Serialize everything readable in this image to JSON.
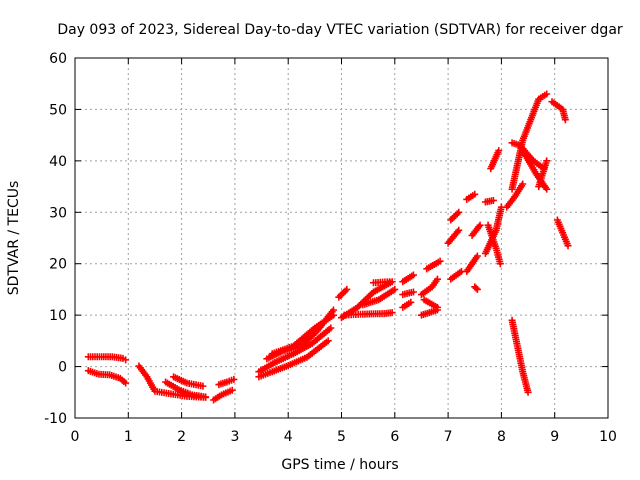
{
  "chart_data": {
    "type": "scatter",
    "title": "Day 093 of 2023, Sidereal Day-to-day VTEC variation (SDTVAR) for receiver dgar",
    "xlabel": "GPS time / hours",
    "ylabel": "SDTVAR / TECUs",
    "xlim": [
      0,
      10
    ],
    "ylim": [
      -10,
      60
    ],
    "xticks": [
      "0",
      "1",
      "2",
      "3",
      "4",
      "5",
      "6",
      "7",
      "8",
      "9",
      "10"
    ],
    "yticks": [
      "-10",
      "0",
      "10",
      "20",
      "30",
      "40",
      "50",
      "60"
    ],
    "grid": true,
    "marker": "plus",
    "color": "#ff0000",
    "tracks": [
      [
        [
          0.25,
          1.9
        ],
        [
          0.5,
          1.9
        ],
        [
          0.7,
          1.9
        ],
        [
          0.9,
          1.6
        ],
        [
          0.95,
          1.3
        ]
      ],
      [
        [
          0.25,
          -0.8
        ],
        [
          0.45,
          -1.5
        ],
        [
          0.65,
          -1.6
        ],
        [
          0.85,
          -2.3
        ],
        [
          0.95,
          -3.2
        ]
      ],
      [
        [
          1.2,
          0.1
        ],
        [
          1.35,
          -2.0
        ],
        [
          1.5,
          -4.8
        ],
        [
          1.8,
          -5.3
        ],
        [
          2.1,
          -5.8
        ],
        [
          2.45,
          -6.0
        ]
      ],
      [
        [
          1.7,
          -3.0
        ],
        [
          1.95,
          -4.5
        ],
        [
          2.2,
          -5.5
        ],
        [
          2.45,
          -5.9
        ]
      ],
      [
        [
          1.85,
          -2.0
        ],
        [
          2.1,
          -3.2
        ],
        [
          2.4,
          -3.8
        ]
      ],
      [
        [
          2.6,
          -6.5
        ],
        [
          2.75,
          -5.5
        ],
        [
          2.95,
          -4.6
        ]
      ],
      [
        [
          2.7,
          -3.5
        ],
        [
          2.85,
          -3.0
        ],
        [
          2.98,
          -2.5
        ]
      ],
      [
        [
          3.45,
          -2.0
        ],
        [
          3.7,
          -1.0
        ],
        [
          4.0,
          0.2
        ],
        [
          4.35,
          1.8
        ],
        [
          4.75,
          5.0
        ]
      ],
      [
        [
          3.45,
          -1.0
        ],
        [
          3.75,
          0.8
        ],
        [
          4.1,
          2.5
        ],
        [
          4.45,
          4.5
        ],
        [
          4.8,
          7.5
        ]
      ],
      [
        [
          3.6,
          1.5
        ],
        [
          3.9,
          3.0
        ],
        [
          4.25,
          4.0
        ],
        [
          4.55,
          7.0
        ],
        [
          4.85,
          11.0
        ]
      ],
      [
        [
          3.7,
          2.5
        ],
        [
          4.1,
          4.0
        ],
        [
          4.5,
          7.5
        ],
        [
          4.85,
          10.0
        ]
      ],
      [
        [
          5.0,
          9.5
        ],
        [
          5.3,
          11.5
        ],
        [
          5.6,
          14.5
        ],
        [
          5.95,
          16.5
        ]
      ],
      [
        [
          4.95,
          13.5
        ],
        [
          5.1,
          15.0
        ]
      ],
      [
        [
          5.05,
          10.0
        ],
        [
          5.4,
          10.2
        ],
        [
          5.8,
          10.3
        ],
        [
          5.95,
          10.5
        ]
      ],
      [
        [
          5.4,
          12.0
        ],
        [
          5.7,
          13.0
        ],
        [
          6.0,
          15.0
        ]
      ],
      [
        [
          5.6,
          16.3
        ],
        [
          5.9,
          16.5
        ]
      ],
      [
        [
          6.15,
          11.5
        ],
        [
          6.3,
          12.5
        ]
      ],
      [
        [
          6.15,
          14.0
        ],
        [
          6.35,
          14.5
        ]
      ],
      [
        [
          6.15,
          16.5
        ],
        [
          6.35,
          17.8
        ]
      ],
      [
        [
          6.5,
          14.0
        ],
        [
          6.7,
          15.5
        ],
        [
          6.8,
          17.0
        ]
      ],
      [
        [
          6.5,
          10.0
        ],
        [
          6.8,
          11.0
        ]
      ],
      [
        [
          6.55,
          13.0
        ],
        [
          6.8,
          11.5
        ]
      ],
      [
        [
          6.6,
          19.0
        ],
        [
          6.85,
          20.5
        ]
      ],
      [
        [
          7.0,
          24.0
        ],
        [
          7.2,
          26.5
        ]
      ],
      [
        [
          7.05,
          28.5
        ],
        [
          7.2,
          30.0
        ]
      ],
      [
        [
          7.05,
          17.0
        ],
        [
          7.25,
          18.5
        ]
      ],
      [
        [
          7.35,
          18.5
        ],
        [
          7.55,
          21.5
        ]
      ],
      [
        [
          7.45,
          25.5
        ],
        [
          7.6,
          27.5
        ]
      ],
      [
        [
          7.35,
          32.5
        ],
        [
          7.5,
          33.5
        ]
      ],
      [
        [
          7.5,
          15.5
        ],
        [
          7.55,
          15.0
        ]
      ],
      [
        [
          7.7,
          22.0
        ],
        [
          7.9,
          26.5
        ],
        [
          8.0,
          31.0
        ]
      ],
      [
        [
          7.75,
          27.5
        ],
        [
          7.9,
          23.0
        ],
        [
          7.98,
          20.0
        ]
      ],
      [
        [
          7.7,
          32.0
        ],
        [
          7.85,
          32.3
        ]
      ],
      [
        [
          7.8,
          38.5
        ],
        [
          7.95,
          42.0
        ]
      ],
      [
        [
          8.1,
          31.0
        ],
        [
          8.25,
          33.0
        ],
        [
          8.4,
          35.5
        ]
      ],
      [
        [
          8.2,
          34.5
        ],
        [
          8.4,
          44.0
        ],
        [
          8.7,
          52.0
        ],
        [
          8.85,
          53.0
        ]
      ],
      [
        [
          8.2,
          43.5
        ],
        [
          8.35,
          43.0
        ],
        [
          8.6,
          40.0
        ],
        [
          8.8,
          38.5
        ]
      ],
      [
        [
          8.4,
          42.0
        ],
        [
          8.65,
          37.5
        ],
        [
          8.85,
          34.5
        ]
      ],
      [
        [
          8.7,
          35.0
        ],
        [
          8.85,
          40.0
        ]
      ],
      [
        [
          8.5,
          40.5
        ],
        [
          8.6,
          40.0
        ]
      ],
      [
        [
          8.95,
          51.5
        ],
        [
          9.15,
          50.0
        ],
        [
          9.2,
          48.0
        ]
      ],
      [
        [
          9.05,
          28.5
        ],
        [
          9.15,
          26.0
        ],
        [
          9.25,
          23.5
        ]
      ],
      [
        [
          8.2,
          9.0
        ],
        [
          8.3,
          4.0
        ],
        [
          8.4,
          -1.0
        ],
        [
          8.5,
          -5.0
        ]
      ]
    ]
  }
}
